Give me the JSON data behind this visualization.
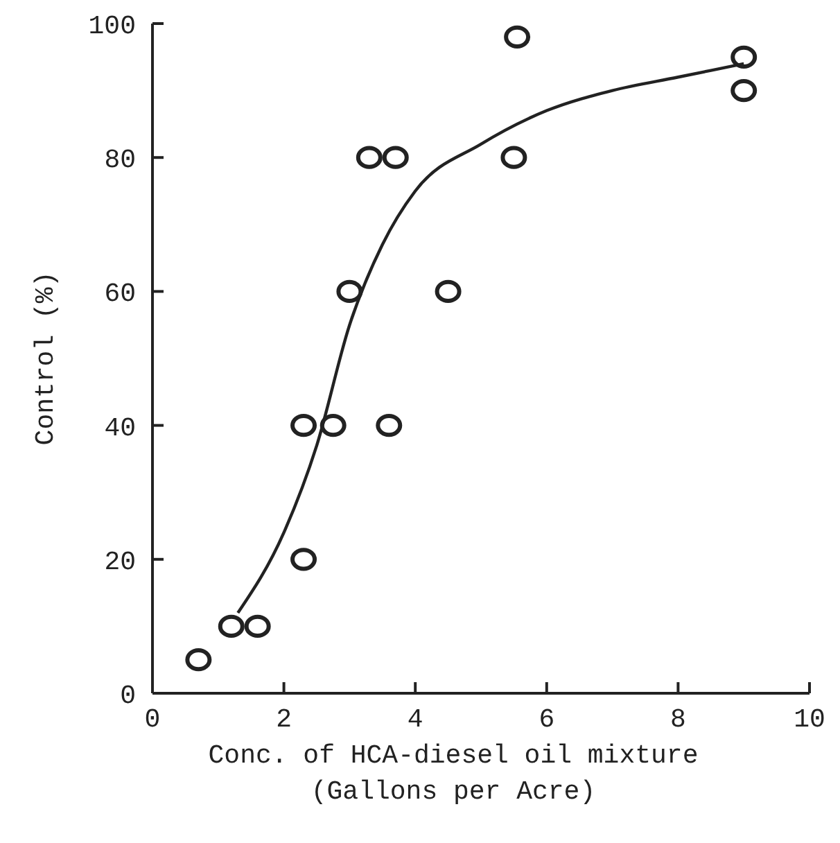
{
  "chart_data": {
    "type": "scatter",
    "xlabel": "Conc. of HCA-diesel oil mixture\n(Gallons per Acre)",
    "ylabel": "Control (%)",
    "xlim": [
      0,
      10
    ],
    "ylim": [
      0,
      100
    ],
    "xticks": [
      0,
      2,
      4,
      6,
      8,
      10
    ],
    "yticks": [
      0,
      20,
      40,
      60,
      80,
      100
    ],
    "grid": false,
    "series": [
      {
        "marker": "circle",
        "color": "#222222",
        "x": [
          0.7,
          1.2,
          1.6,
          2.3,
          2.3,
          2.75,
          3.0,
          3.3,
          3.7,
          3.6,
          4.5,
          5.55,
          5.5,
          9.0,
          9.0
        ],
        "values": [
          5,
          10,
          10,
          20,
          40,
          40,
          60,
          80,
          80,
          40,
          60,
          98,
          80,
          95,
          90
        ]
      },
      {
        "type": "line",
        "color": "#222222",
        "x": [
          1.3,
          2.0,
          2.5,
          3.0,
          3.5,
          4.0,
          5.0,
          6.0,
          7.0,
          8.0,
          9.0
        ],
        "values": [
          12,
          24,
          37,
          55,
          67,
          75,
          82,
          87,
          90,
          92,
          94
        ]
      }
    ]
  }
}
